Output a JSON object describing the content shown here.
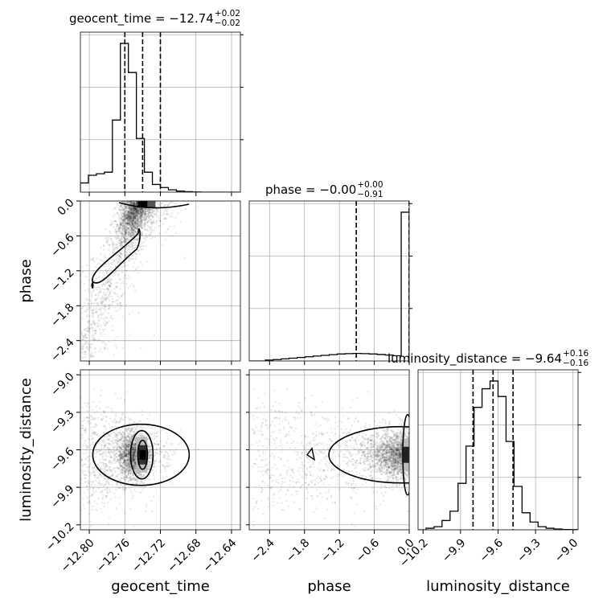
{
  "chart_data": {
    "type": "corner",
    "parameters": [
      "geocent_time",
      "phase",
      "luminosity_distance"
    ],
    "axis_labels": {
      "geocent_time": "geocent_time",
      "phase": "phase",
      "luminosity_distance": "luminosity_distance"
    },
    "ranges": {
      "geocent_time": [
        -12.81,
        -12.63
      ],
      "phase": [
        -2.75,
        0.0
      ],
      "luminosity_distance": [
        -10.24,
        -8.96
      ]
    },
    "ticks": {
      "geocent_time": {
        "values": [
          -12.8,
          -12.76,
          -12.72,
          -12.68,
          -12.64
        ],
        "labels": [
          "−12.80",
          "−12.76",
          "−12.72",
          "−12.68",
          "−12.64"
        ]
      },
      "phase": {
        "values": [
          -2.4,
          -1.8,
          -1.2,
          -0.6,
          0.0
        ],
        "labels": [
          "−2.4",
          "−1.8",
          "−1.2",
          "−0.6",
          "0.0"
        ]
      },
      "luminosity_distance": {
        "values": [
          -10.2,
          -9.9,
          -9.6,
          -9.3,
          -9.0
        ],
        "labels": [
          "−10.2",
          "−9.9",
          "−9.6",
          "−9.3",
          "−9.0"
        ]
      }
    },
    "titles": {
      "geocent_time": {
        "text": "geocent_time = −12.74",
        "upper": "+0.02",
        "lower": "−0.02"
      },
      "phase": {
        "text": "phase = −0.00",
        "upper": "+0.00",
        "lower": "−0.91"
      },
      "luminosity_distance": {
        "text": "luminosity_distance = −9.64",
        "upper": "+0.16",
        "lower": "−0.16"
      }
    },
    "quantiles": {
      "geocent_time": [
        -12.76,
        -12.74,
        -12.72
      ],
      "phase": [
        -0.91,
        0.0,
        0.0
      ],
      "luminosity_distance": [
        -9.8,
        -9.64,
        -9.48
      ]
    },
    "histograms": {
      "geocent_time": [
        0.06,
        0.11,
        0.12,
        0.13,
        0.47,
        0.97,
        0.78,
        0.35,
        0.13,
        0.05,
        0.03,
        0.015,
        0.007,
        0.003,
        0.001,
        0,
        0,
        0,
        0,
        0
      ],
      "phase": [
        0,
        0,
        0.005,
        0.008,
        0.012,
        0.016,
        0.02,
        0.024,
        0.028,
        0.032,
        0.036,
        0.04,
        0.042,
        0.043,
        0.042,
        0.04,
        0.037,
        0.034,
        0.03,
        0.85
      ],
      "luminosity_distance": [
        0,
        0.01,
        0.02,
        0.06,
        0.12,
        0.3,
        0.54,
        0.79,
        0.91,
        0.96,
        0.86,
        0.57,
        0.28,
        0.11,
        0.05,
        0.02,
        0.01,
        0.005,
        0.002,
        0.001
      ]
    },
    "grid": true,
    "contours": true,
    "scatter_points": true
  }
}
